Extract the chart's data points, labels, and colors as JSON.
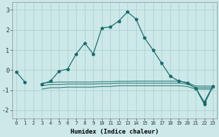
{
  "xlabel": "Humidex (Indice chaleur)",
  "background_color": "#cce8e8",
  "grid_color": "#aacccc",
  "line_color": "#1a6b6b",
  "xlim": [
    -0.5,
    23.5
  ],
  "ylim": [
    -2.4,
    3.4
  ],
  "yticks": [
    -2,
    -1,
    0,
    1,
    2,
    3
  ],
  "xticks": [
    0,
    1,
    2,
    3,
    4,
    5,
    6,
    7,
    8,
    9,
    10,
    11,
    12,
    13,
    14,
    15,
    16,
    17,
    18,
    19,
    20,
    21,
    22,
    23
  ],
  "main_series_seg1": {
    "x": [
      0,
      1
    ],
    "y": [
      -0.1,
      -0.6
    ]
  },
  "main_series_seg2": {
    "x": [
      3,
      4,
      5,
      6,
      7,
      8,
      9,
      10,
      11,
      12,
      13,
      14,
      15,
      16,
      17,
      18,
      19,
      20,
      21,
      22,
      23
    ],
    "y": [
      -0.7,
      -0.55,
      -0.05,
      0.05,
      0.8,
      1.35,
      0.8,
      2.1,
      2.15,
      2.45,
      2.9,
      2.55,
      1.6,
      1.0,
      0.35,
      -0.3,
      -0.55,
      -0.65,
      -0.9,
      -1.6,
      -0.8
    ]
  },
  "flat_lines": [
    {
      "x": [
        3,
        4,
        5,
        6,
        7,
        8,
        9,
        10,
        11,
        12,
        13,
        14,
        15,
        16,
        17,
        18,
        19,
        20,
        21,
        22,
        23
      ],
      "y": [
        -0.65,
        -0.62,
        -0.6,
        -0.6,
        -0.6,
        -0.6,
        -0.6,
        -0.58,
        -0.58,
        -0.56,
        -0.56,
        -0.55,
        -0.55,
        -0.55,
        -0.55,
        -0.55,
        -0.55,
        -0.62,
        -0.8,
        -0.8,
        -0.8
      ]
    },
    {
      "x": [
        3,
        4,
        5,
        6,
        7,
        8,
        9,
        10,
        11,
        12,
        13,
        14,
        15,
        16,
        17,
        18,
        19,
        20,
        21,
        22,
        23
      ],
      "y": [
        -0.78,
        -0.72,
        -0.72,
        -0.7,
        -0.7,
        -0.7,
        -0.7,
        -0.68,
        -0.68,
        -0.65,
        -0.65,
        -0.65,
        -0.65,
        -0.65,
        -0.65,
        -0.65,
        -0.65,
        -0.7,
        -0.88,
        -0.88,
        -0.88
      ]
    },
    {
      "x": [
        3,
        4,
        5,
        6,
        7,
        8,
        9,
        10,
        11,
        12,
        13,
        14,
        15,
        16,
        17,
        18,
        19,
        20,
        21,
        22,
        23
      ],
      "y": [
        -0.95,
        -0.88,
        -0.88,
        -0.85,
        -0.85,
        -0.85,
        -0.85,
        -0.82,
        -0.82,
        -0.78,
        -0.78,
        -0.78,
        -0.78,
        -0.78,
        -0.78,
        -0.78,
        -0.78,
        -0.82,
        -0.95,
        -0.95,
        -0.95
      ]
    }
  ],
  "v_shape": {
    "x": [
      21,
      22,
      23
    ],
    "y": [
      -0.9,
      -1.7,
      -0.82
    ]
  }
}
